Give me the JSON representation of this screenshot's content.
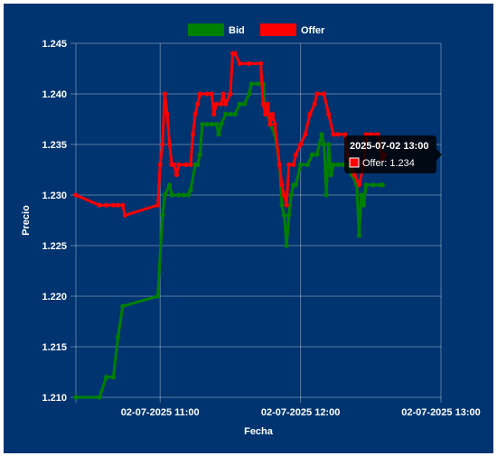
{
  "chart_data": {
    "type": "line",
    "xlabel": "Fecha",
    "ylabel": "Precio",
    "x_start": "10:24",
    "x_end": "13:00",
    "x_ticks": [
      {
        "label": "02-07-2025 11:00",
        "time": "11:00"
      },
      {
        "label": "02-07-2025 12:00",
        "time": "12:00"
      },
      {
        "label": "02-07-2025 13:00",
        "time": "13:00"
      }
    ],
    "ylim": [
      1.21,
      1.245
    ],
    "y_ticks": [
      1.21,
      1.215,
      1.22,
      1.225,
      1.23,
      1.235,
      1.24,
      1.245
    ],
    "grid": true,
    "legend_position": "top-center",
    "series": [
      {
        "name": "Bid",
        "color": "#008000",
        "points": [
          [
            "10:24",
            1.21
          ],
          [
            "10:34",
            1.21
          ],
          [
            "10:37",
            1.212
          ],
          [
            "10:40",
            1.212
          ],
          [
            "10:42",
            1.216
          ],
          [
            "10:44",
            1.219
          ],
          [
            "10:59",
            1.22
          ],
          [
            "11:01",
            1.228
          ],
          [
            "11:02",
            1.23
          ],
          [
            "11:04",
            1.231
          ],
          [
            "11:05",
            1.23
          ],
          [
            "11:08",
            1.23
          ],
          [
            "11:10",
            1.23
          ],
          [
            "11:12",
            1.23
          ],
          [
            "11:13",
            1.2305
          ],
          [
            "11:15",
            1.233
          ],
          [
            "11:16",
            1.233
          ],
          [
            "11:17",
            1.234
          ],
          [
            "11:18",
            1.237
          ],
          [
            "11:20",
            1.237
          ],
          [
            "11:22",
            1.237
          ],
          [
            "11:24",
            1.237
          ],
          [
            "11:25",
            1.236
          ],
          [
            "11:26",
            1.237
          ],
          [
            "11:28",
            1.238
          ],
          [
            "11:30",
            1.238
          ],
          [
            "11:32",
            1.238
          ],
          [
            "11:34",
            1.239
          ],
          [
            "11:36",
            1.239
          ],
          [
            "11:38",
            1.24
          ],
          [
            "11:39",
            1.241
          ],
          [
            "11:42",
            1.241
          ],
          [
            "11:44",
            1.241
          ],
          [
            "11:45",
            1.238
          ],
          [
            "11:46",
            1.238
          ],
          [
            "11:47",
            1.237
          ],
          [
            "11:49",
            1.236
          ],
          [
            "11:51",
            1.233
          ],
          [
            "11:52",
            1.229
          ],
          [
            "11:53",
            1.228
          ],
          [
            "11:54",
            1.225
          ],
          [
            "11:55",
            1.228
          ],
          [
            "11:56",
            1.23
          ],
          [
            "11:57",
            1.231
          ],
          [
            "11:58",
            1.231
          ],
          [
            "12:00",
            1.233
          ],
          [
            "12:03",
            1.233
          ],
          [
            "12:05",
            1.234
          ],
          [
            "12:07",
            1.234
          ],
          [
            "12:09",
            1.236
          ],
          [
            "12:10",
            1.235
          ],
          [
            "12:11",
            1.23
          ],
          [
            "12:12",
            1.235
          ],
          [
            "12:13",
            1.232
          ],
          [
            "12:14",
            1.233
          ],
          [
            "12:16",
            1.233
          ],
          [
            "12:18",
            1.233
          ],
          [
            "12:20",
            1.233
          ],
          [
            "12:22",
            1.232
          ],
          [
            "12:24",
            1.231
          ],
          [
            "12:25",
            1.226
          ],
          [
            "12:26",
            1.23
          ],
          [
            "12:27",
            1.229
          ],
          [
            "12:28",
            1.231
          ],
          [
            "12:31",
            1.231
          ],
          [
            "12:34",
            1.231
          ],
          [
            "12:35",
            1.231
          ]
        ]
      },
      {
        "name": "Offer",
        "color": "#ff0000",
        "points": [
          [
            "10:24",
            1.23
          ],
          [
            "10:34",
            1.229
          ],
          [
            "10:37",
            1.229
          ],
          [
            "10:40",
            1.229
          ],
          [
            "10:42",
            1.229
          ],
          [
            "10:44",
            1.229
          ],
          [
            "10:45",
            1.228
          ],
          [
            "10:59",
            1.229
          ],
          [
            "11:00",
            1.233
          ],
          [
            "11:01",
            1.235
          ],
          [
            "11:02",
            1.24
          ],
          [
            "11:03",
            1.238
          ],
          [
            "11:04",
            1.235
          ],
          [
            "11:05",
            1.233
          ],
          [
            "11:06",
            1.233
          ],
          [
            "11:07",
            1.232
          ],
          [
            "11:08",
            1.233
          ],
          [
            "11:11",
            1.233
          ],
          [
            "11:13",
            1.233
          ],
          [
            "11:14",
            1.236
          ],
          [
            "11:15",
            1.238
          ],
          [
            "11:16",
            1.239
          ],
          [
            "11:17",
            1.24
          ],
          [
            "11:20",
            1.24
          ],
          [
            "11:22",
            1.24
          ],
          [
            "11:23",
            1.238
          ],
          [
            "11:24",
            1.239
          ],
          [
            "11:26",
            1.239
          ],
          [
            "11:27",
            1.24
          ],
          [
            "11:28",
            1.239
          ],
          [
            "11:30",
            1.24
          ],
          [
            "11:31",
            1.244
          ],
          [
            "11:32",
            1.244
          ],
          [
            "11:34",
            1.243
          ],
          [
            "11:38",
            1.243
          ],
          [
            "11:43",
            1.243
          ],
          [
            "11:44",
            1.239
          ],
          [
            "11:45",
            1.238
          ],
          [
            "11:46",
            1.239
          ],
          [
            "11:47",
            1.237
          ],
          [
            "11:48",
            1.238
          ],
          [
            "11:49",
            1.237
          ],
          [
            "11:51",
            1.233
          ],
          [
            "11:52",
            1.231
          ],
          [
            "11:53",
            1.23
          ],
          [
            "11:54",
            1.229
          ],
          [
            "11:55",
            1.233
          ],
          [
            "11:57",
            1.233
          ],
          [
            "11:58",
            1.234
          ],
          [
            "12:00",
            1.235
          ],
          [
            "12:02",
            1.236
          ],
          [
            "12:04",
            1.238
          ],
          [
            "12:06",
            1.239
          ],
          [
            "12:07",
            1.24
          ],
          [
            "12:10",
            1.24
          ],
          [
            "12:12",
            1.238
          ],
          [
            "12:14",
            1.236
          ],
          [
            "12:16",
            1.236
          ],
          [
            "12:19",
            1.236
          ],
          [
            "12:20",
            1.234
          ],
          [
            "12:23",
            1.232
          ],
          [
            "12:25",
            1.231
          ],
          [
            "12:27",
            1.233
          ],
          [
            "12:28",
            1.236
          ],
          [
            "12:30",
            1.236
          ],
          [
            "12:33",
            1.236
          ],
          [
            "12:34",
            1.235
          ],
          [
            "12:35",
            1.2335
          ],
          [
            "12:36",
            1.234
          ]
        ]
      }
    ],
    "tooltip": {
      "title": "2025-07-02 13:00",
      "series": "Offer",
      "value": "1.234",
      "text": "Offer: 1.234",
      "anchor": [
        "12:36",
        1.234
      ]
    }
  }
}
